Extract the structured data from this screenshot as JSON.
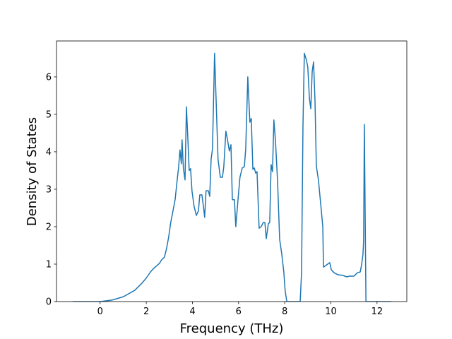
{
  "chart_data": {
    "type": "line",
    "xlabel": "Frequency (THz)",
    "ylabel": "Density of States",
    "color": "#1f77b4",
    "xlim": [
      -1.89,
      13.29
    ],
    "ylim": [
      0,
      6.96
    ],
    "xticks": [
      0,
      2,
      4,
      6,
      8,
      10,
      12
    ],
    "yticks": [
      0,
      1,
      2,
      3,
      4,
      5,
      6
    ],
    "x": [
      -1.19,
      0,
      0.52,
      1.01,
      1.5,
      1.78,
      1.99,
      2.18,
      2.33,
      2.42,
      2.57,
      2.66,
      2.79,
      2.88,
      2.97,
      3.06,
      3.15,
      3.25,
      3.34,
      3.4,
      3.46,
      3.52,
      3.55,
      3.61,
      3.68,
      3.74,
      3.8,
      3.86,
      3.92,
      3.98,
      4.07,
      4.17,
      4.26,
      4.32,
      4.41,
      4.47,
      4.53,
      4.59,
      4.69,
      4.75,
      4.81,
      4.87,
      4.96,
      5.02,
      5.11,
      5.21,
      5.3,
      5.36,
      5.45,
      5.51,
      5.6,
      5.67,
      5.73,
      5.82,
      5.88,
      5.97,
      6.06,
      6.16,
      6.25,
      6.31,
      6.4,
      6.49,
      6.55,
      6.62,
      6.68,
      6.74,
      6.8,
      6.89,
      6.98,
      7.07,
      7.14,
      7.2,
      7.29,
      7.35,
      7.41,
      7.47,
      7.53,
      7.6,
      7.69,
      7.78,
      7.87,
      7.96,
      8.02,
      8.09,
      8.67,
      8.73,
      8.79,
      8.85,
      8.94,
      9.0,
      9.07,
      9.13,
      9.19,
      9.25,
      9.31,
      9.37,
      9.46,
      9.56,
      9.65,
      9.68,
      9.77,
      9.86,
      9.95,
      10.02,
      10.14,
      10.29,
      10.51,
      10.69,
      10.81,
      11.0,
      11.15,
      11.27,
      11.33,
      11.39,
      11.42,
      11.45,
      11.52,
      12.62
    ],
    "values": [
      0,
      0,
      0.04,
      0.13,
      0.3,
      0.47,
      0.62,
      0.79,
      0.89,
      0.94,
      1.02,
      1.11,
      1.19,
      1.42,
      1.72,
      2.11,
      2.4,
      2.72,
      3.25,
      3.58,
      4.05,
      3.68,
      4.32,
      3.55,
      3.25,
      5.2,
      4.38,
      3.5,
      3.55,
      2.96,
      2.55,
      2.3,
      2.42,
      2.85,
      2.85,
      2.58,
      2.25,
      2.96,
      2.96,
      2.81,
      3.8,
      4.08,
      6.63,
      5.51,
      3.8,
      3.32,
      3.32,
      3.6,
      4.55,
      4.36,
      4.02,
      4.19,
      2.72,
      2.72,
      2.0,
      2.68,
      3.32,
      3.57,
      3.6,
      4.08,
      6.0,
      4.79,
      4.89,
      3.53,
      3.57,
      3.43,
      3.47,
      1.96,
      2.0,
      2.11,
      2.11,
      1.68,
      2.08,
      2.11,
      3.66,
      3.47,
      4.85,
      4.28,
      3.21,
      1.66,
      1.28,
      0.79,
      0.28,
      0,
      0,
      0.79,
      4.66,
      6.63,
      6.45,
      6.26,
      5.42,
      5.15,
      6.15,
      6.4,
      5.4,
      3.62,
      3.25,
      2.6,
      2.0,
      0.92,
      0.96,
      1.0,
      1.04,
      0.85,
      0.77,
      0.72,
      0.7,
      0.66,
      0.68,
      0.68,
      0.77,
      0.79,
      0.98,
      1.26,
      1.64,
      4.73,
      0,
      0
    ]
  }
}
